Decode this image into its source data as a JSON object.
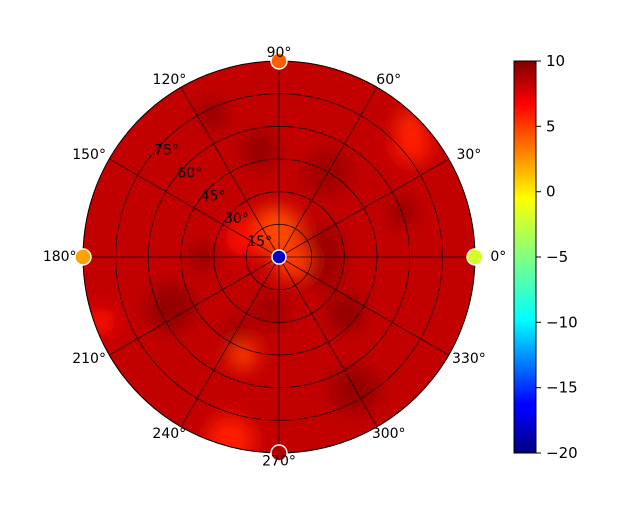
{
  "chart_data": {
    "type": "heatmap",
    "projection": "polar",
    "title": "",
    "colormap": "jet",
    "clim": [
      -20,
      10
    ],
    "base_value": 8,
    "angular_ticks": [
      "0°",
      "30°",
      "60°",
      "90°",
      "120°",
      "150°",
      "180°",
      "210°",
      "240°",
      "270°",
      "300°",
      "330°"
    ],
    "angular_tick_values": [
      0,
      30,
      60,
      90,
      120,
      150,
      180,
      210,
      240,
      270,
      300,
      330
    ],
    "radial_ticks": [
      "15°",
      "30°",
      "45°",
      "60°",
      "75°"
    ],
    "radial_tick_values": [
      15,
      30,
      45,
      60,
      75
    ],
    "rlim": [
      0,
      90
    ],
    "grid": true,
    "colorbar": {
      "ticks": [
        "10",
        "5",
        "0",
        "−5",
        "−10",
        "−15",
        "−20"
      ],
      "tick_values": [
        10,
        5,
        0,
        -5,
        -10,
        -15,
        -20
      ]
    },
    "regions": [
      {
        "theta": 115,
        "r": 72,
        "value": 9.5
      },
      {
        "theta": 100,
        "r": 50,
        "value": 9.3
      },
      {
        "theta": 60,
        "r": 45,
        "value": 9.0
      },
      {
        "theta": 20,
        "r": 60,
        "value": 9.5
      },
      {
        "theta": 15,
        "r": 22,
        "value": 9.2
      },
      {
        "theta": 205,
        "r": 55,
        "value": 9.4
      },
      {
        "theta": 180,
        "r": 35,
        "value": 9.3
      },
      {
        "theta": 320,
        "r": 40,
        "value": 9.5
      },
      {
        "theta": 300,
        "r": 70,
        "value": 9.3
      },
      {
        "theta": 240,
        "r": 40,
        "value": 9.2
      },
      {
        "theta": 260,
        "r": 25,
        "value": 9.0
      },
      {
        "theta": 350,
        "r": 20,
        "value": 9.1
      },
      {
        "theta": 45,
        "r": 85,
        "value": 4.8
      },
      {
        "theta": 40,
        "r": 80,
        "value": 5.5
      },
      {
        "theta": 95,
        "r": 12,
        "value": 4.0
      },
      {
        "theta": 250,
        "r": 48,
        "value": 4.5
      },
      {
        "theta": 345,
        "r": 6,
        "value": 4.5
      },
      {
        "theta": 255,
        "r": 87,
        "value": 5.5
      },
      {
        "theta": 200,
        "r": 87,
        "value": 6.0
      },
      {
        "theta": 150,
        "r": 18,
        "value": 6.0
      }
    ],
    "markers": [
      {
        "theta": 90,
        "r": 90,
        "value": 3.5
      },
      {
        "theta": 0,
        "r": 90,
        "value": -2.5
      },
      {
        "theta": 180,
        "r": 90,
        "value": 1.5
      },
      {
        "theta": 270,
        "r": 90,
        "value": 8.5
      },
      {
        "theta": 0,
        "r": 0,
        "value": -18
      }
    ]
  }
}
